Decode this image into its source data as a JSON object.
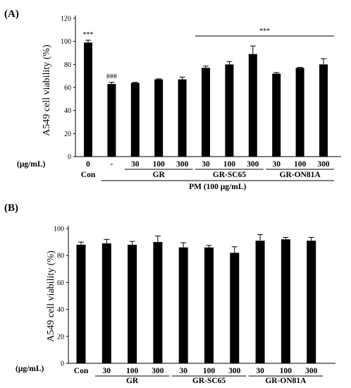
{
  "chart_data": [
    {
      "type": "bar",
      "panel_label": "(A)",
      "unit_label": "(μg/mL)",
      "ylabel": "A549 cell viability (%)",
      "ylim": [
        0,
        120
      ],
      "yticks": [
        0,
        20,
        40,
        60,
        80,
        100,
        120
      ],
      "grid": false,
      "categories": [
        "0",
        "-",
        "30",
        "100",
        "300",
        "30",
        "100",
        "300",
        "30",
        "100",
        "300"
      ],
      "values": [
        99,
        63,
        64,
        67,
        67,
        77,
        80,
        89,
        72,
        77,
        80
      ],
      "errors": [
        2,
        1.5,
        0.5,
        0.5,
        2,
        1.5,
        2.5,
        7,
        1,
        0.5,
        5
      ],
      "annotations": [
        {
          "index": 0,
          "text": "***"
        },
        {
          "index": 1,
          "text": "###"
        },
        {
          "from": 5,
          "to": 10,
          "text": "***"
        }
      ],
      "groups": [
        {
          "label": "Con",
          "from": 0,
          "to": 0,
          "underline": false
        },
        {
          "label": "GR",
          "from": 2,
          "to": 4,
          "underline": true
        },
        {
          "label": "GR-SC65",
          "from": 5,
          "to": 7,
          "underline": true
        },
        {
          "label": "GR-ON81A",
          "from": 8,
          "to": 10,
          "underline": true
        }
      ],
      "supergroup": {
        "label": "PM (100 μg/mL)",
        "from": 1,
        "to": 10
      }
    },
    {
      "type": "bar",
      "panel_label": "(B)",
      "unit_label": "(μg/mL)",
      "ylabel": "A549 cell viability (%)",
      "ylim": [
        0,
        100
      ],
      "yticks": [
        0,
        20,
        40,
        60,
        80,
        100
      ],
      "grid": false,
      "categories": [
        "Con",
        "30",
        "100",
        "300",
        "30",
        "100",
        "300",
        "30",
        "100",
        "300"
      ],
      "values": [
        88,
        89,
        88,
        90,
        86,
        86,
        82,
        91,
        92,
        91
      ],
      "errors": [
        2,
        3,
        2.5,
        4.5,
        3.5,
        1.5,
        4.5,
        4.5,
        1.5,
        2.5
      ],
      "groups": [
        {
          "label": "GR",
          "from": 1,
          "to": 3,
          "underline": true
        },
        {
          "label": "GR-SC65",
          "from": 4,
          "to": 6,
          "underline": true
        },
        {
          "label": "GR-ON81A",
          "from": 7,
          "to": 9,
          "underline": true
        }
      ]
    }
  ]
}
